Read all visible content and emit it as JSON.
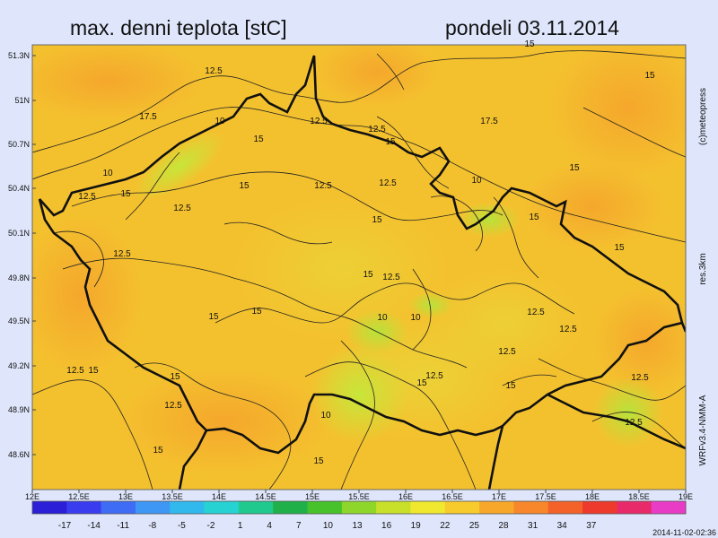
{
  "title": {
    "left": "max. denni teplota [stC]",
    "right": "pondeli 03.11.2014"
  },
  "side_labels": {
    "copyright": "(c)meteopress",
    "resolution": "res.3km",
    "model": "WRFv3.4-NMM-A"
  },
  "run_stamp": "2014-11-02-02:36",
  "axes": {
    "y_ticks": [
      "51.3N",
      "51N",
      "50.7N",
      "50.4N",
      "50.1N",
      "49.8N",
      "49.5N",
      "49.2N",
      "48.9N",
      "48.6N"
    ],
    "x_ticks": [
      "12E",
      "12.5E",
      "13E",
      "13.5E",
      "14E",
      "14.5E",
      "15E",
      "15.5E",
      "16E",
      "16.5E",
      "17E",
      "17.5E",
      "18E",
      "18.5E",
      "19E"
    ]
  },
  "colorbar": {
    "ticks": [
      "-17",
      "-14",
      "-11",
      "-8",
      "-5",
      "-2",
      "1",
      "4",
      "7",
      "10",
      "13",
      "16",
      "19",
      "22",
      "25",
      "28",
      "31",
      "34",
      "37"
    ],
    "colors": [
      "#2b1fd8",
      "#3a3cf0",
      "#3f6cf5",
      "#3f97f5",
      "#31b9ee",
      "#27d2d2",
      "#20c98e",
      "#20b04a",
      "#48c22a",
      "#8fd62a",
      "#c8e02a",
      "#f0e82e",
      "#f7cb2b",
      "#f7a82a",
      "#f7872a",
      "#f4622a",
      "#ee3a2d",
      "#e82a6a",
      "#e83cc7"
    ]
  },
  "contour_labels": [
    "12.5",
    "15",
    "17.5",
    "10",
    "12.5",
    "15",
    "12.5",
    "15",
    "17.5",
    "10",
    "15",
    "12.5",
    "15",
    "12.5",
    "15",
    "12.5",
    "10",
    "15",
    "15",
    "12.5",
    "15",
    "10",
    "10",
    "12.5",
    "12.5",
    "15",
    "15",
    "15",
    "12.5",
    "15",
    "12.5",
    "15",
    "10",
    "15",
    "12.5",
    "15",
    "12.5",
    "12.5",
    "12.5",
    "15",
    "15",
    "12.5",
    "12.5",
    "15"
  ]
}
